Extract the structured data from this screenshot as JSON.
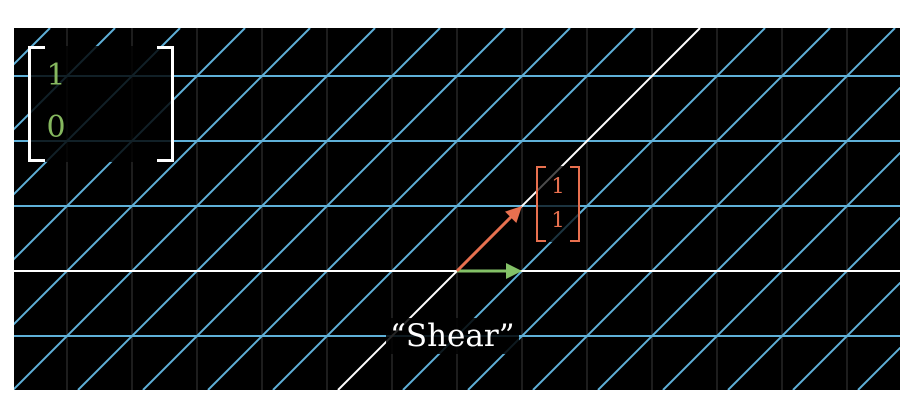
{
  "matrix": {
    "col1": [
      "1",
      "0"
    ]
  },
  "vector": {
    "entries": [
      "1",
      "1"
    ]
  },
  "caption": "“Shear”",
  "colors": {
    "grid": "#5fb0d8",
    "background_grid": "#3a3a3a",
    "axis": "#ffffff",
    "i_hat": "#83c167",
    "vector": "#e8704f",
    "matrix_entries": "#86b85f"
  },
  "transform": {
    "type": "shear",
    "matrix": [
      [
        1,
        1
      ],
      [
        0,
        1
      ]
    ]
  },
  "vector_data": {
    "i_hat": [
      1,
      0
    ],
    "transformed_vector": [
      1,
      1
    ]
  }
}
